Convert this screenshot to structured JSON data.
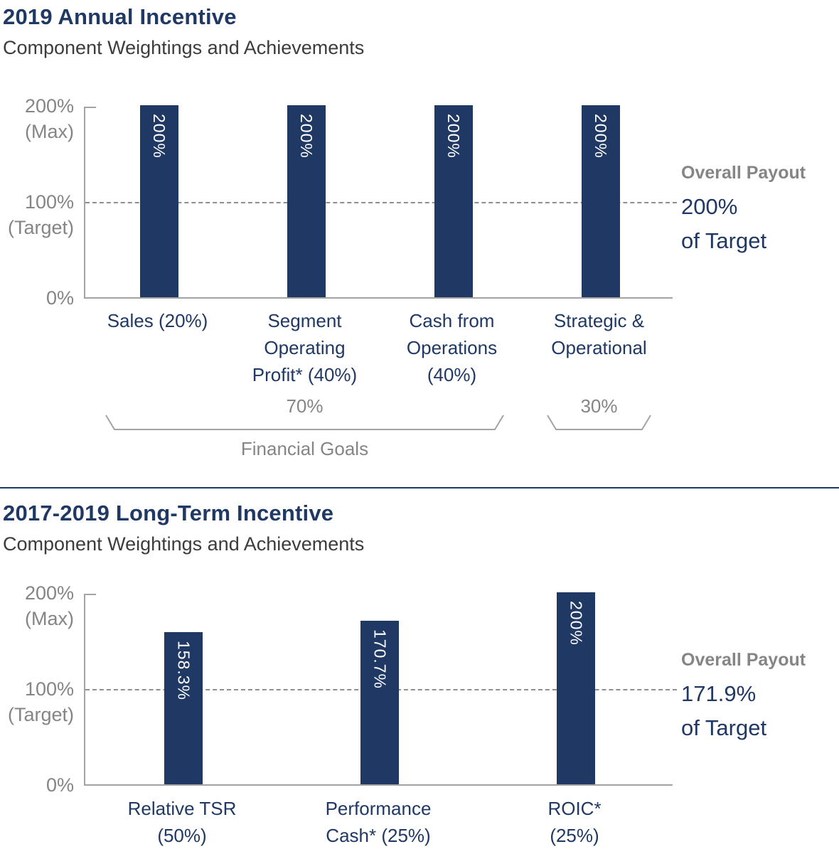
{
  "colors": {
    "navy": "#1f3864",
    "gray": "#858585",
    "subtitle": "#3c3c3c",
    "axis": "#a3a3a3",
    "dashed": "#8f8f8f",
    "bar_label": "#ffffff"
  },
  "chart_data": [
    {
      "type": "bar",
      "title": "2019 Annual Incentive",
      "subtitle": "Component Weightings and Achievements",
      "xlabel": "",
      "ylabel": "",
      "ylim": [
        0,
        200
      ],
      "grid": false,
      "y_ticks": [
        {
          "value": 200,
          "label": "200%",
          "sublabel": "(Max)"
        },
        {
          "value": 100,
          "label": "100%",
          "sublabel": "(Target)"
        },
        {
          "value": 0,
          "label": "0%",
          "sublabel": ""
        }
      ],
      "target_line": 100,
      "categories": [
        "Sales (20%)",
        "Segment Operating Profit* (40%)",
        "Cash from Operations (40%)",
        "Strategic & Operational"
      ],
      "category_lines": [
        [
          "Sales (20%)"
        ],
        [
          "Segment",
          "Operating",
          "Profit* (40%)"
        ],
        [
          "Cash from",
          "Operations",
          "(40%)"
        ],
        [
          "Strategic &",
          "Operational"
        ]
      ],
      "values": [
        200,
        200,
        200,
        200
      ],
      "value_labels": [
        "200%",
        "200%",
        "200%",
        "200%"
      ],
      "annotation": {
        "heading": "Overall Payout",
        "value": "200%",
        "suffix": "of Target"
      },
      "brackets": [
        {
          "label": "70%",
          "from_bar": 0,
          "to_bar": 2,
          "sublabel": "Financial Goals"
        },
        {
          "label": "30%",
          "from_bar": 3,
          "to_bar": 3,
          "sublabel": ""
        }
      ]
    },
    {
      "type": "bar",
      "title": "2017-2019 Long-Term Incentive",
      "subtitle": "Component Weightings and Achievements",
      "xlabel": "",
      "ylabel": "",
      "ylim": [
        0,
        200
      ],
      "grid": false,
      "y_ticks": [
        {
          "value": 200,
          "label": "200%",
          "sublabel": "(Max)"
        },
        {
          "value": 100,
          "label": "100%",
          "sublabel": "(Target)"
        },
        {
          "value": 0,
          "label": "0%",
          "sublabel": ""
        }
      ],
      "target_line": 100,
      "categories": [
        "Relative TSR (50%)",
        "Performance Cash* (25%)",
        "ROIC* (25%)"
      ],
      "category_lines": [
        [
          "Relative TSR",
          "(50%)"
        ],
        [
          "Performance",
          "Cash* (25%)"
        ],
        [
          "ROIC*",
          "(25%)"
        ]
      ],
      "values": [
        158.3,
        170.7,
        200
      ],
      "value_labels": [
        "158.3%",
        "170.7%",
        "200%"
      ],
      "annotation": {
        "heading": "Overall Payout",
        "value": "171.9%",
        "suffix": "of Target"
      },
      "brackets": []
    }
  ]
}
